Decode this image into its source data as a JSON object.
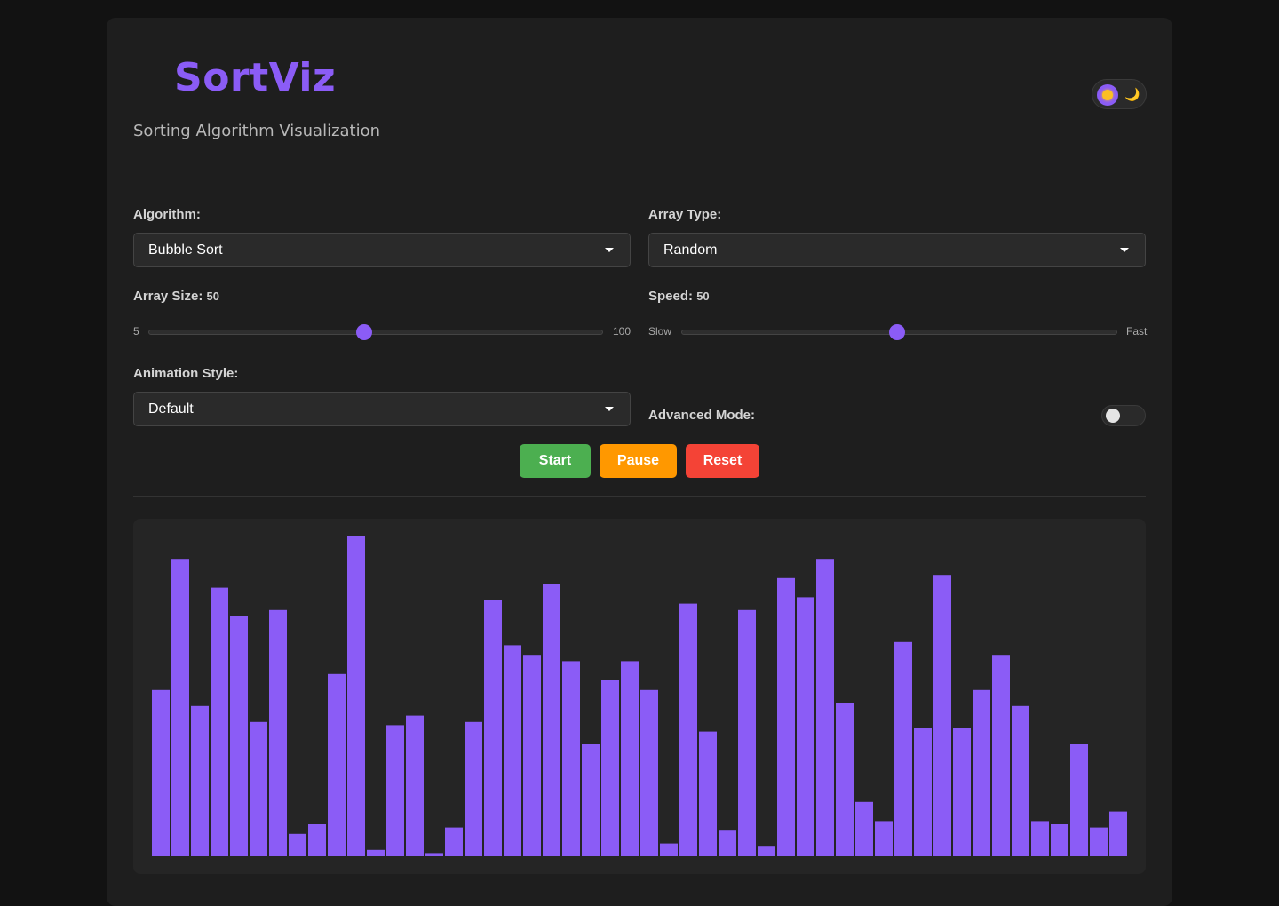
{
  "header": {
    "title": "SortViz",
    "subtitle": "Sorting Algorithm Visualization",
    "theme_toggle": {
      "sun_icon": "sun-icon",
      "moon_icon": "moon-icon",
      "moon_glyph": "🌙"
    }
  },
  "controls": {
    "algorithm": {
      "label": "Algorithm:",
      "selected": "Bubble Sort"
    },
    "array_type": {
      "label": "Array Type:",
      "selected": "Random"
    },
    "array_size": {
      "label": "Array Size:",
      "value": "50",
      "min_label": "5",
      "max_label": "100",
      "level": 50,
      "min": 5,
      "max": 100
    },
    "speed": {
      "label": "Speed:",
      "value": "50",
      "min_label": "Slow",
      "max_label": "Fast",
      "level": 0.5
    },
    "animation_style": {
      "label": "Animation Style:",
      "selected": "Default"
    },
    "advanced_mode": {
      "label": "Advanced Mode:",
      "on": false
    }
  },
  "buttons": {
    "start": {
      "label": "Start",
      "color": "#4caf50"
    },
    "pause": {
      "label": "Pause",
      "color": "#ff9800"
    },
    "reset": {
      "label": "Reset",
      "color": "#f44336"
    }
  },
  "colors": {
    "accent": "#8b5cf6",
    "bar": "#8b5cf6"
  },
  "chart_data": {
    "type": "bar",
    "values": [
      52,
      93,
      47,
      84,
      75,
      42,
      77,
      7,
      10,
      57,
      100,
      2,
      41,
      44,
      1,
      9,
      42,
      80,
      66,
      63,
      85,
      61,
      35,
      55,
      61,
      52,
      4,
      79,
      39,
      8,
      77,
      3,
      87,
      81,
      93,
      48,
      17,
      11,
      67,
      40,
      88,
      40,
      52,
      63,
      47,
      11,
      10,
      35,
      9,
      14
    ],
    "ylim": [
      0,
      100
    ],
    "grid": false,
    "legend": "none"
  }
}
